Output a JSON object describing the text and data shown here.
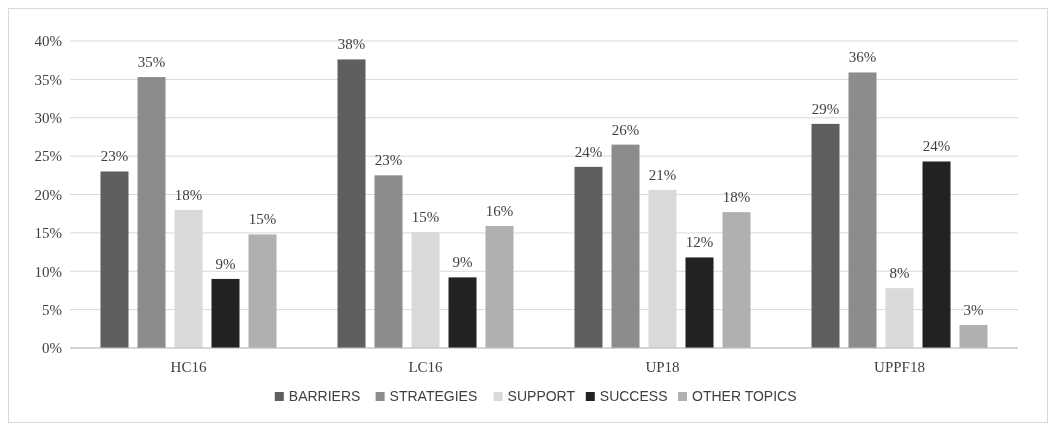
{
  "chart_data": {
    "type": "bar",
    "categories": [
      "HC16",
      "LC16",
      "UP18",
      "UPPF18"
    ],
    "series": [
      {
        "name": "BARRIERS",
        "color": "#5f5f5f",
        "values": [
          23,
          37.6,
          23.6,
          29.2
        ],
        "value_labels": [
          "23%",
          "38%",
          "24%",
          "29%"
        ]
      },
      {
        "name": "STRATEGIES",
        "color": "#8c8c8c",
        "values": [
          35.3,
          22.5,
          26.5,
          35.9
        ],
        "value_labels": [
          "35%",
          "23%",
          "26%",
          "36%"
        ]
      },
      {
        "name": "SUPPORT",
        "color": "#d9d9d9",
        "values": [
          18,
          15.1,
          20.6,
          7.8
        ],
        "value_labels": [
          "18%",
          "15%",
          "21%",
          "8%"
        ]
      },
      {
        "name": "SUCCESS",
        "color": "#222222",
        "values": [
          9,
          9.2,
          11.8,
          24.3
        ],
        "value_labels": [
          "9%",
          "9%",
          "12%",
          "24%"
        ]
      },
      {
        "name": "OTHER TOPICS",
        "color": "#b0b0b0",
        "values": [
          14.8,
          15.9,
          17.7,
          3
        ],
        "value_labels": [
          "15%",
          "16%",
          "18%",
          "3%"
        ]
      }
    ],
    "ylim": [
      0,
      40
    ],
    "yticks": [
      {
        "value": 0,
        "label": "0%"
      },
      {
        "value": 5,
        "label": "5%"
      },
      {
        "value": 10,
        "label": "10%"
      },
      {
        "value": 15,
        "label": "15%"
      },
      {
        "value": 20,
        "label": "20%"
      },
      {
        "value": 25,
        "label": "25%"
      },
      {
        "value": 30,
        "label": "30%"
      },
      {
        "value": 35,
        "label": "35%"
      },
      {
        "value": 40,
        "label": "40%"
      }
    ],
    "grid": "y",
    "legend": "bottom"
  }
}
